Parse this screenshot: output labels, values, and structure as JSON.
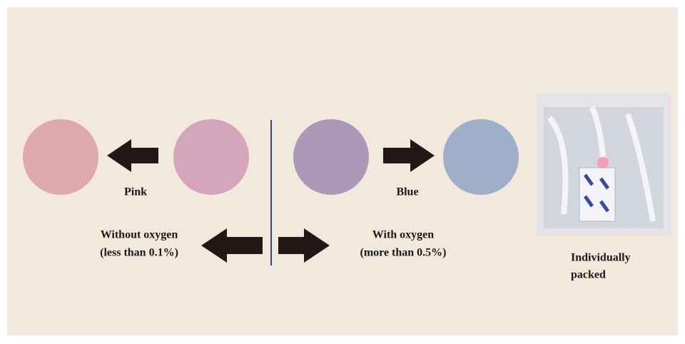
{
  "labels": {
    "pink": "Pink",
    "blue": "Blue"
  },
  "without_oxygen": {
    "title": "Without oxygen",
    "detail": "(less than 0.1%)"
  },
  "with_oxygen": {
    "title": "With oxygen",
    "detail": "(more than 0.5%)"
  },
  "package": {
    "lines": [
      "Individually",
      "packed"
    ]
  }
}
